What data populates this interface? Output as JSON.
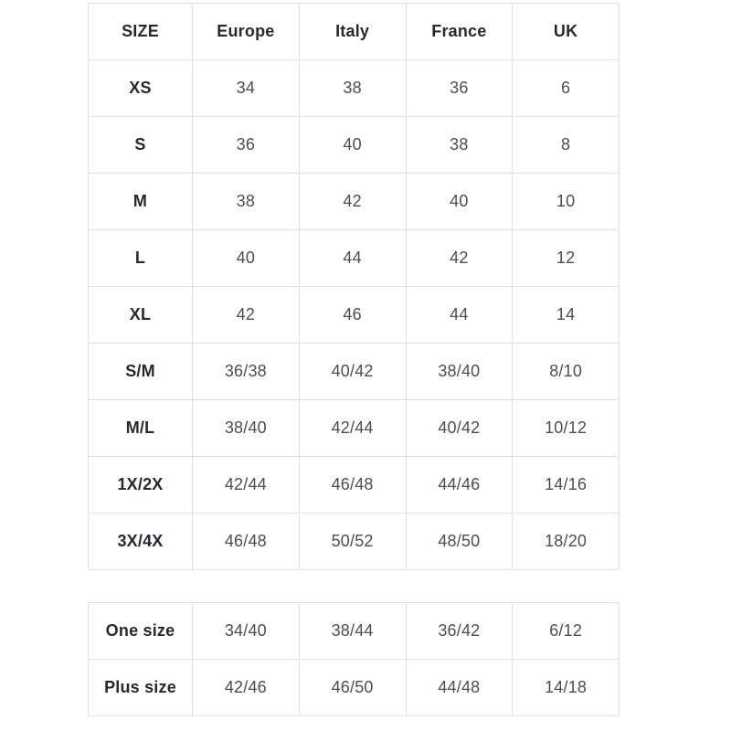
{
  "colors": {
    "background": "#ffffff",
    "border": "#e0e0e0",
    "header_text": "#29282f",
    "value_text": "#4d4d55"
  },
  "main_table": {
    "headers": [
      "SIZE",
      "Europe",
      "Italy",
      "France",
      "UK"
    ],
    "rows": [
      {
        "label": "XS",
        "values": [
          "34",
          "38",
          "36",
          "6"
        ]
      },
      {
        "label": "S",
        "values": [
          "36",
          "40",
          "38",
          "8"
        ]
      },
      {
        "label": "M",
        "values": [
          "38",
          "42",
          "40",
          "10"
        ]
      },
      {
        "label": "L",
        "values": [
          "40",
          "44",
          "42",
          "12"
        ]
      },
      {
        "label": "XL",
        "values": [
          "42",
          "46",
          "44",
          "14"
        ]
      },
      {
        "label": "S/M",
        "values": [
          "36/38",
          "40/42",
          "38/40",
          "8/10"
        ]
      },
      {
        "label": "M/L",
        "values": [
          "38/40",
          "42/44",
          "40/42",
          "10/12"
        ]
      },
      {
        "label": "1X/2X",
        "values": [
          "42/44",
          "46/48",
          "44/46",
          "14/16"
        ]
      },
      {
        "label": "3X/4X",
        "values": [
          "46/48",
          "50/52",
          "48/50",
          "18/20"
        ]
      }
    ]
  },
  "secondary_table": {
    "rows": [
      {
        "label": "One size",
        "values": [
          "34/40",
          "38/44",
          "36/42",
          "6/12"
        ]
      },
      {
        "label": "Plus size",
        "values": [
          "42/46",
          "46/50",
          "44/48",
          "14/18"
        ]
      }
    ]
  }
}
